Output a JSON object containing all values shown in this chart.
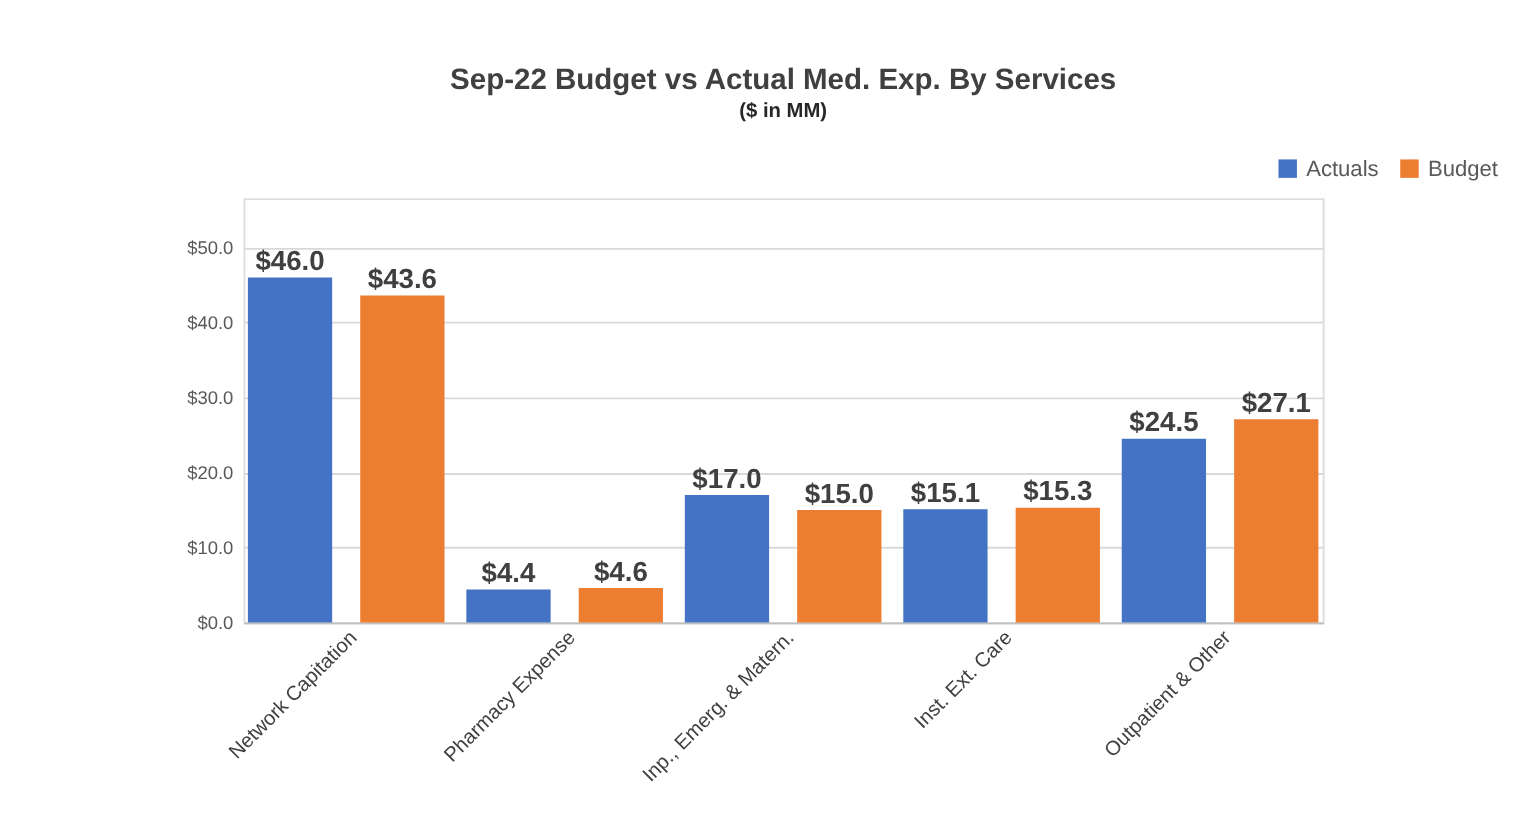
{
  "chart_data": {
    "type": "bar",
    "title": "Sep-22 Budget vs Actual Med. Exp. By Services",
    "subtitle": "($ in MM)",
    "categories": [
      "Network Capitation",
      "Pharmacy Expense",
      "Inp., Emerg. & Matern.",
      "Inst. Ext. Care",
      "Outpatient & Other"
    ],
    "series": [
      {
        "name": "Actuals",
        "color": "#4472c4",
        "values": [
          46.0,
          4.4,
          17.0,
          15.1,
          24.5
        ],
        "value_labels": [
          "$46.0",
          "$4.4",
          "$17.0",
          "$15.1",
          "$24.5"
        ]
      },
      {
        "name": "Budget",
        "color": "#ed7d31",
        "values": [
          43.6,
          4.6,
          15.0,
          15.3,
          27.1
        ],
        "value_labels": [
          "$43.6",
          "$4.6",
          "$15.0",
          "$15.3",
          "$27.1"
        ]
      }
    ],
    "ylim": [
      0,
      56.6
    ],
    "yticks": [
      {
        "value": 0,
        "label": "$0.0"
      },
      {
        "value": 10,
        "label": "$10.0"
      },
      {
        "value": 20,
        "label": "$20.0"
      },
      {
        "value": 30,
        "label": "$30.0"
      },
      {
        "value": 40,
        "label": "$40.0"
      },
      {
        "value": 50,
        "label": "$50.0"
      }
    ],
    "grid": "y",
    "legend": "top right"
  }
}
